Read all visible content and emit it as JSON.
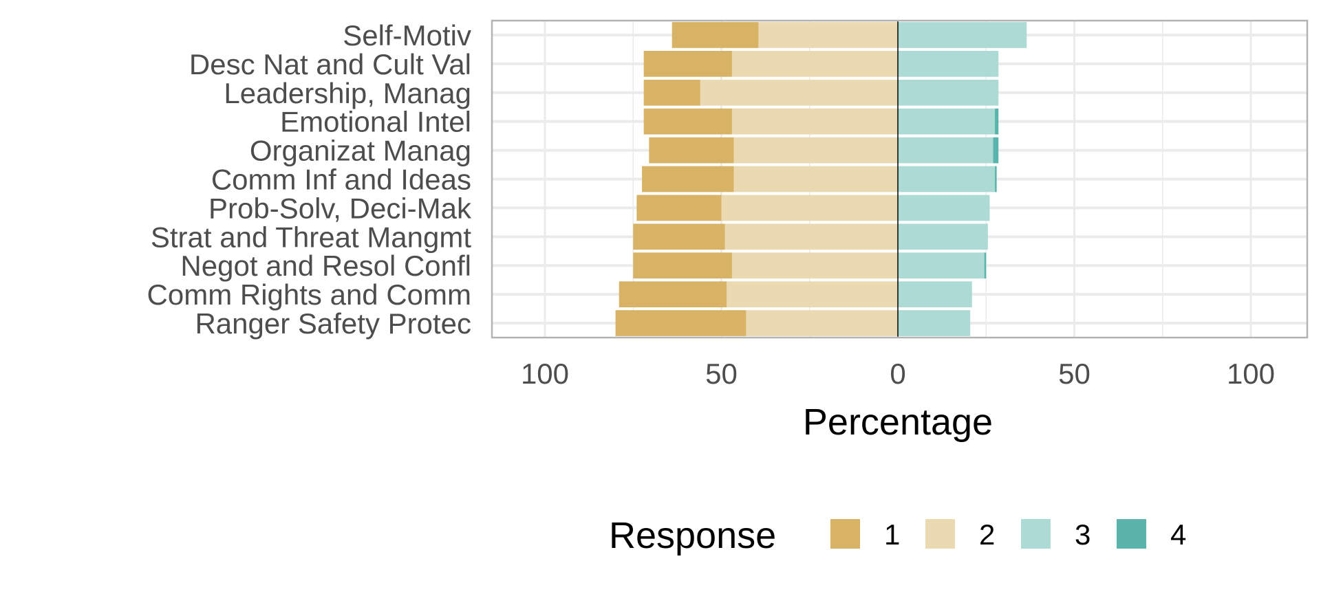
{
  "chart_data": {
    "type": "bar",
    "orientation": "horizontal",
    "stacking": "diverging",
    "xlabel": "Percentage",
    "ylabel": "",
    "xlim": [
      -115,
      115
    ],
    "x_ticks": [
      -100,
      -50,
      0,
      50,
      100
    ],
    "x_tick_labels": [
      "100",
      "50",
      "0",
      "50",
      "100"
    ],
    "grid": true,
    "legend_placement": "bottom",
    "legend": {
      "title": "Response",
      "labels": [
        "1",
        "2",
        "3",
        "4"
      ]
    },
    "colors": {
      "1": "#d8b365",
      "2": "#ebd9b2",
      "3": "#acdad5",
      "4": "#5ab4ac"
    },
    "categories": [
      "Self-Motiv",
      "Desc Nat and Cult Val",
      "Leadership, Manag",
      "Emotional Intel",
      "Organizat Manag",
      "Comm Inf and Ideas",
      "Prob-Solv, Deci-Mak",
      "Strat and Threat Mangmt",
      "Negot and Resol Confl",
      "Comm Rights and Comm",
      "Ranger Safety Protec"
    ],
    "series": [
      {
        "name": "1",
        "side": "negative",
        "values": [
          24.5,
          25,
          16,
          25,
          24,
          26,
          24,
          26,
          28,
          30.5,
          37
        ]
      },
      {
        "name": "2",
        "side": "negative",
        "values": [
          39.5,
          47,
          56,
          47,
          46.5,
          46.5,
          50,
          49,
          47,
          48.5,
          43
        ]
      },
      {
        "name": "3",
        "side": "positive",
        "values": [
          36.5,
          28.5,
          28.5,
          27.5,
          27,
          27.5,
          26,
          25.5,
          24.5,
          21,
          20.5
        ]
      },
      {
        "name": "4",
        "side": "positive",
        "values": [
          0,
          0,
          0,
          1,
          1.5,
          0.5,
          0,
          0,
          0.5,
          0,
          0
        ]
      }
    ]
  }
}
